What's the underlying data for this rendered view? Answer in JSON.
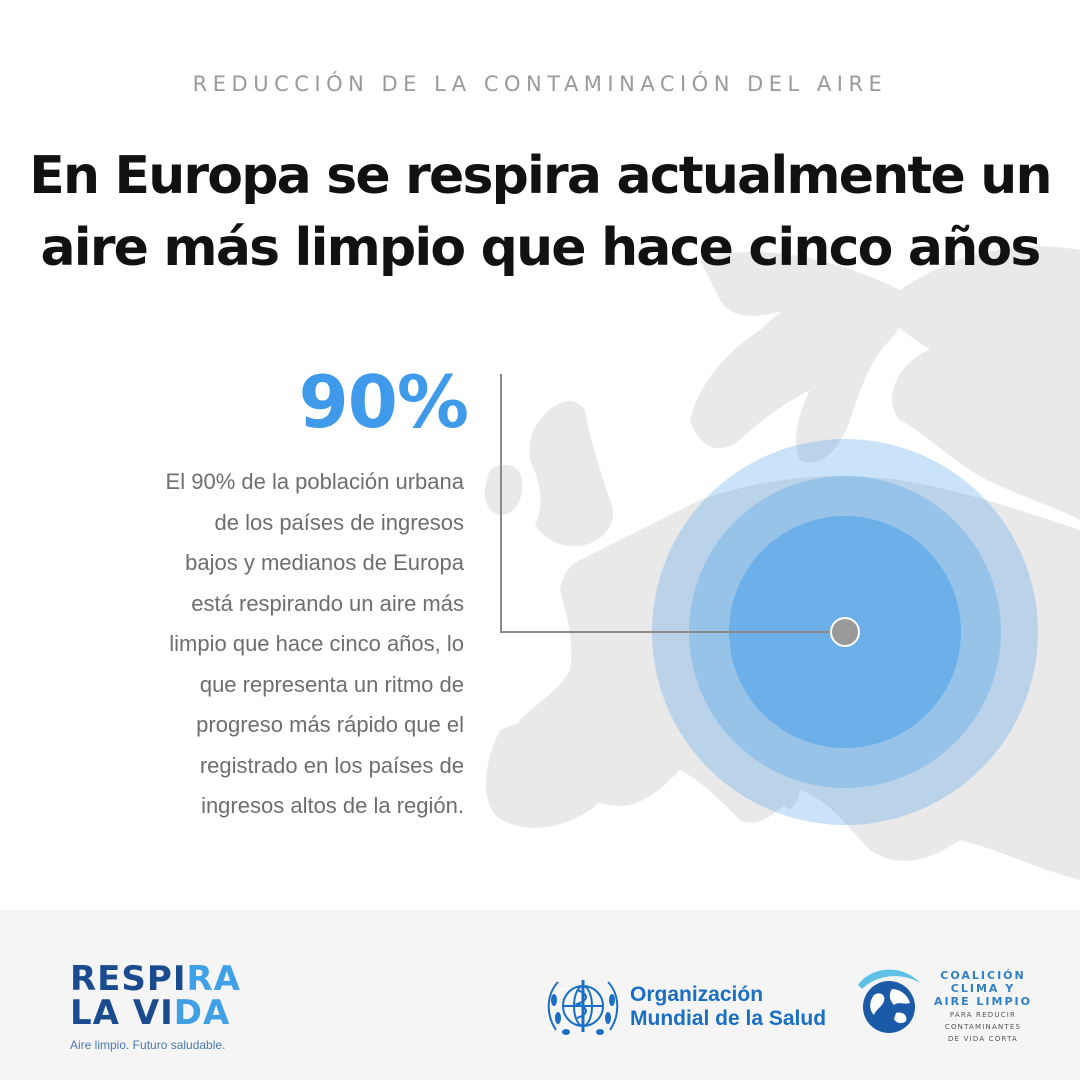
{
  "header": {
    "kicker": "REDUCCIÓN DE LA CONTAMINACIÓN DEL AIRE",
    "headline_line1": "En Europa se respira actualmente un",
    "headline_line2": "aire más limpio que hace cinco años"
  },
  "stat": {
    "value": "90%",
    "color": "#3f9be9",
    "body_lines": [
      "El 90% de la población urbana",
      "de los países de ingresos",
      "bajos y medianos de Europa",
      "está respirando un aire más",
      "limpio que hace cinco años, lo",
      "que representa un ritmo de",
      "progreso más rápido que el",
      "registrado en los países de",
      "ingresos altos de la región."
    ]
  },
  "footer": {
    "respira": {
      "line1_a": "RESPI",
      "line1_b": "RA",
      "line2_a": "LA VI",
      "line2_b": "DA",
      "tagline": "Aire limpio. Futuro saludable."
    },
    "oms": {
      "line1": "Organización",
      "line2": "Mundial de la Salud",
      "icon": "who-emblem-icon"
    },
    "ccac": {
      "title1": "COALICIÓN",
      "title2": "CLIMA Y",
      "title3": "AIRE LIMPIO",
      "sub1": "PARA REDUCIR",
      "sub2": "CONTAMINANTES",
      "sub3": "DE VIDA CORTA",
      "icon": "globe-icon"
    }
  },
  "colors": {
    "accent": "#3f9be9",
    "brand_dark": "#1a4b8f",
    "map_gray": "#e8e8e8",
    "footer_bg": "#f5f5f5"
  }
}
